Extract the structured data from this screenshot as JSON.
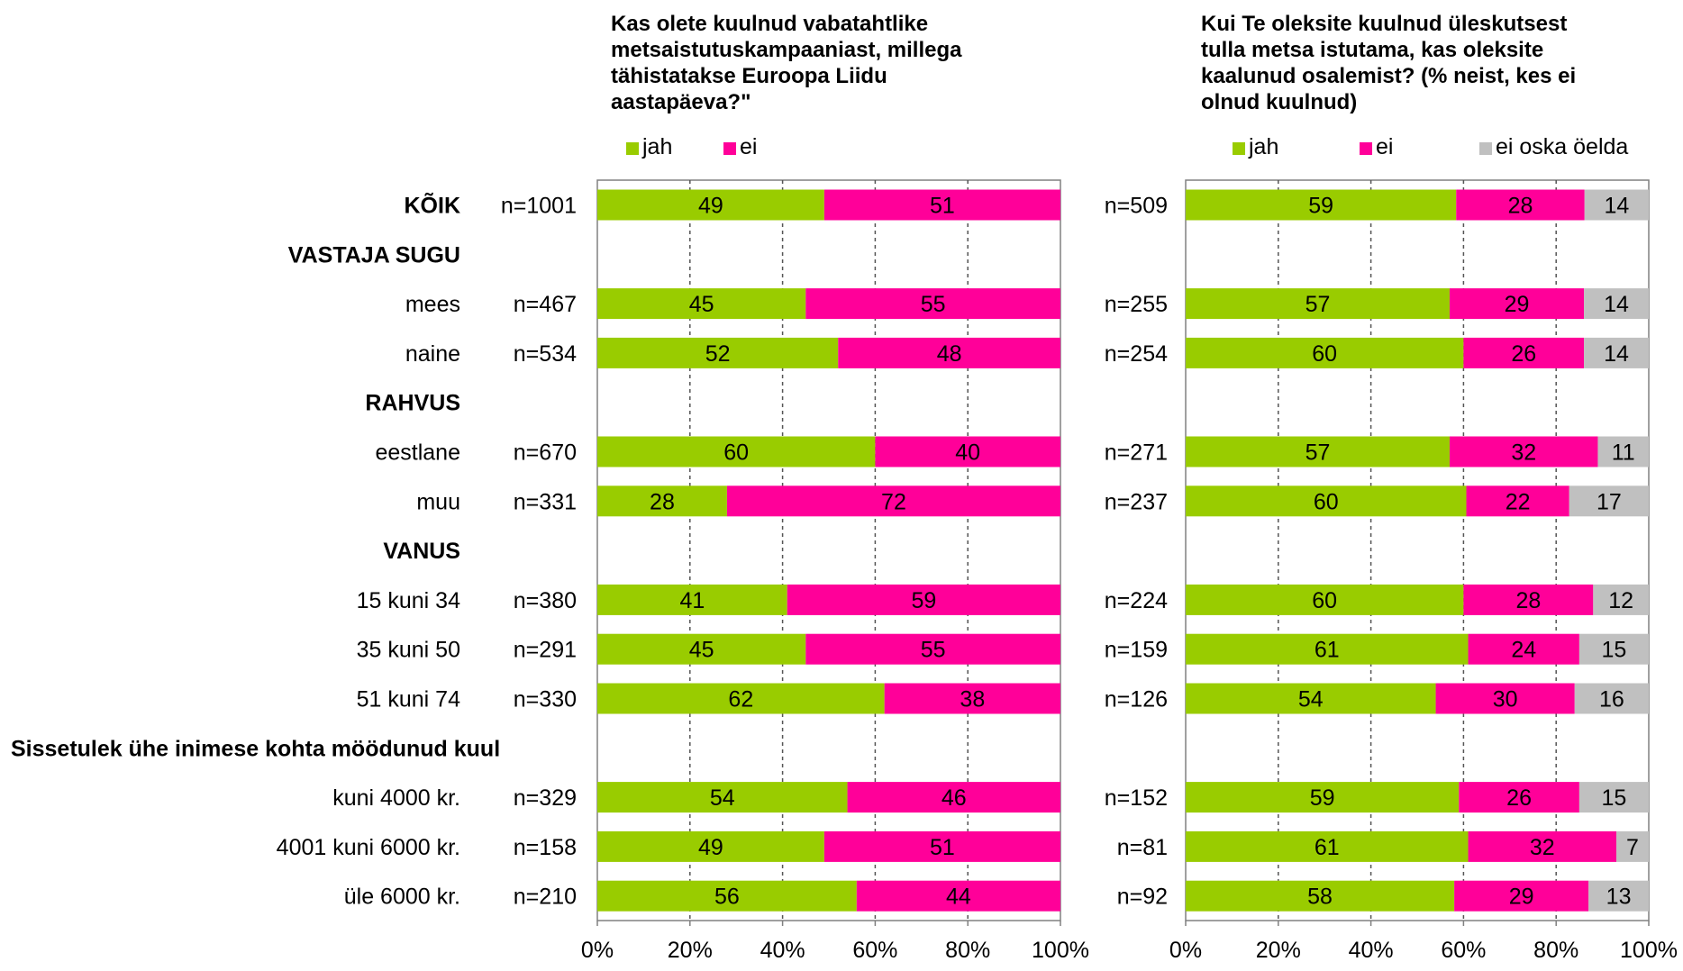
{
  "chart_data": [
    {
      "type": "bar",
      "stacked": true,
      "orientation": "horizontal",
      "title": "Kas olete kuulnud vabatahtlike metsaistutuskampaaniast, millega tähistatakse Euroopa Liidu aastapäeva?\"",
      "title_lines": [
        "Kas olete kuulnud vabatahtlike",
        "metsaistutuskampaaniast, millega",
        "tähistatakse Euroopa Liidu",
        "aastapäeva?\""
      ],
      "series": [
        {
          "name": "jah",
          "color": "#99cc00",
          "values": [
            49,
            null,
            45,
            52,
            null,
            60,
            28,
            null,
            41,
            45,
            62,
            null,
            54,
            49,
            56
          ]
        },
        {
          "name": "ei",
          "color": "#ff0099",
          "values": [
            51,
            null,
            55,
            48,
            null,
            40,
            72,
            null,
            59,
            55,
            38,
            null,
            46,
            51,
            44
          ]
        }
      ],
      "n": [
        "n=1001",
        null,
        "n=467",
        "n=534",
        null,
        "n=670",
        "n=331",
        null,
        "n=380",
        "n=291",
        "n=330",
        null,
        "n=329",
        "n=158",
        "n=210"
      ],
      "xlim": [
        0,
        100
      ],
      "xticks": [
        "0%",
        "20%",
        "40%",
        "60%",
        "80%",
        "100%"
      ],
      "grid": true,
      "legend_position": "top"
    },
    {
      "type": "bar",
      "stacked": true,
      "orientation": "horizontal",
      "title": "Kui Te oleksite kuulnud üleskutsest tulla metsa istutama, kas oleksite kaalunud osalemist? (% neist, kes ei olnud kuulnud)",
      "title_lines": [
        "Kui Te oleksite kuulnud üleskutsest",
        "tulla metsa istutama, kas oleksite",
        "kaalunud osalemist? (% neist, kes ei",
        "olnud kuulnud)"
      ],
      "series": [
        {
          "name": "jah",
          "color": "#99cc00",
          "values": [
            59,
            null,
            57,
            60,
            null,
            57,
            60,
            null,
            60,
            61,
            54,
            null,
            59,
            61,
            58
          ]
        },
        {
          "name": "ei",
          "color": "#ff0099",
          "values": [
            28,
            null,
            29,
            26,
            null,
            32,
            22,
            null,
            28,
            24,
            30,
            null,
            26,
            32,
            29
          ]
        },
        {
          "name": "ei oska öelda",
          "color": "#c0c0c0",
          "values": [
            14,
            null,
            14,
            14,
            null,
            11,
            17,
            null,
            12,
            15,
            16,
            null,
            15,
            7,
            13
          ]
        }
      ],
      "n": [
        "n=509",
        null,
        "n=255",
        "n=254",
        null,
        "n=271",
        "n=237",
        null,
        "n=224",
        "n=159",
        "n=126",
        null,
        "n=152",
        "n=81",
        "n=92"
      ],
      "xlim": [
        0,
        100
      ],
      "xticks": [
        "0%",
        "20%",
        "40%",
        "60%",
        "80%",
        "100%"
      ],
      "grid": true,
      "legend_position": "top"
    }
  ],
  "rows": [
    {
      "label": "KÕIK",
      "header": false,
      "bold": true
    },
    {
      "label": "VASTAJA SUGU",
      "header": true,
      "bold": true
    },
    {
      "label": "mees",
      "header": false,
      "bold": false
    },
    {
      "label": "naine",
      "header": false,
      "bold": false
    },
    {
      "label": "RAHVUS",
      "header": true,
      "bold": true
    },
    {
      "label": "eestlane",
      "header": false,
      "bold": false
    },
    {
      "label": "muu",
      "header": false,
      "bold": false
    },
    {
      "label": "VANUS",
      "header": true,
      "bold": true
    },
    {
      "label": "15 kuni 34",
      "header": false,
      "bold": false
    },
    {
      "label": "35 kuni 50",
      "header": false,
      "bold": false
    },
    {
      "label": "51 kuni 74",
      "header": false,
      "bold": false
    },
    {
      "label": "Sissetulek ühe inimese kohta möödunud kuul",
      "header": true,
      "bold": true
    },
    {
      "label": "kuni 4000 kr.",
      "header": false,
      "bold": false
    },
    {
      "label": "4001 kuni 6000 kr.",
      "header": false,
      "bold": false
    },
    {
      "label": "üle 6000 kr.",
      "header": false,
      "bold": false
    }
  ]
}
